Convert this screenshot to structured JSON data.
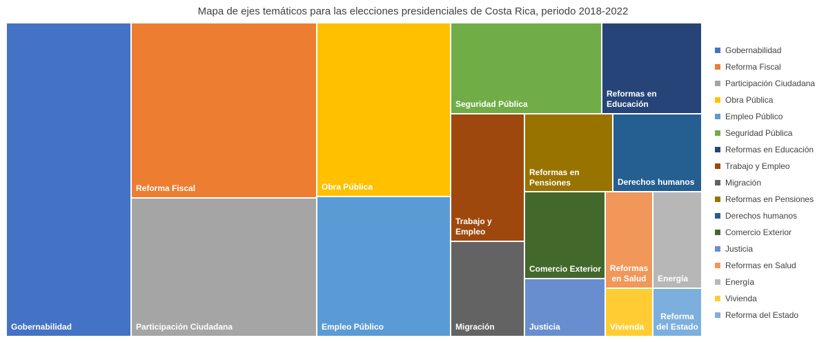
{
  "chart_data": {
    "type": "treemap",
    "title": "Mapa de ejes temáticos para las elecciones presidenciales de Costa Rica, periodo 2018-2022",
    "legend_position": "right",
    "items": [
      {
        "name": "Gobernabilidad",
        "label": "Gobernabilidad",
        "color": "#4472C4",
        "value": 12.5
      },
      {
        "name": "Reforma Fiscal",
        "label": "Reforma Fiscal",
        "color": "#ED7D31",
        "value": 9.0
      },
      {
        "name": "Participación Ciudadana",
        "label": "Participación Ciudadana",
        "color": "#A5A5A5",
        "value": 7.9
      },
      {
        "name": "Obra Pública",
        "label": "Obra Pública",
        "color": "#FFC000",
        "value": 6.5
      },
      {
        "name": "Empleo Público",
        "label": "Empleo Público",
        "color": "#5B9BD5",
        "value": 5.9
      },
      {
        "name": "Seguridad Pública",
        "label": "Seguridad Pública",
        "color": "#70AD47",
        "value": 4.3
      },
      {
        "name": "Reformas en Educación",
        "label": "Reformas en Educación",
        "color": "#264478",
        "value": 3.8
      },
      {
        "name": "Trabajo y Empleo",
        "label": "Trabajo y Empleo",
        "color": "#9E480E",
        "value": 2.5
      },
      {
        "name": "Migración",
        "label": "Migración",
        "color": "#636363",
        "value": 1.9
      },
      {
        "name": "Reformas en Pensiones",
        "label": "Reformas en Pensiones",
        "color": "#997300",
        "value": 1.9
      },
      {
        "name": "Derechos humanos",
        "label": "Derechos humanos",
        "color": "#255E91",
        "value": 1.7
      },
      {
        "name": "Comercio Exterior",
        "label": "Comercio Exterior",
        "color": "#43682B",
        "value": 1.9
      },
      {
        "name": "Justicia",
        "label": "Justicia",
        "color": "#698ED0",
        "value": 1.2
      },
      {
        "name": "Reformas en Salud",
        "label": "Reformas en Salud",
        "color": "#F1975A",
        "value": 1.0
      },
      {
        "name": "Energía",
        "label": "Energía",
        "color": "#B7B7B7",
        "value": 1.0
      },
      {
        "name": "Vivienda",
        "label": "Vivienda",
        "color": "#FFCD33",
        "value": 0.7
      },
      {
        "name": "Reforma del Estado",
        "label": "Reforma del Estado",
        "color": "#7CAFDD",
        "value": 0.7
      }
    ]
  }
}
